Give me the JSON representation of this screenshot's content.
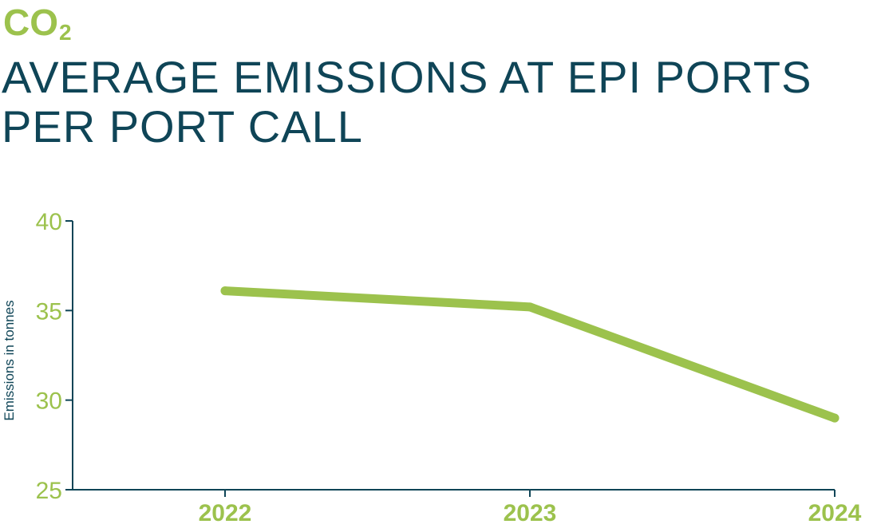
{
  "heading": {
    "prefix": "CO",
    "prefix_sub": "2",
    "title_line1": "AVERAGE EMISSIONS AT EPI PORTS",
    "title_line2": "PER PORT CALL"
  },
  "colors": {
    "accent": "#9cc24d",
    "navy": "#0f4557"
  },
  "chart_data": {
    "type": "line",
    "title": "AVERAGE EMISSIONS AT EPI PORTS PER PORT CALL",
    "xlabel": "",
    "ylabel": "Emissions in tonnes",
    "categories": [
      "2022",
      "2023",
      "2024"
    ],
    "values": [
      36.1,
      35.2,
      29.0
    ],
    "ylim": [
      25,
      40
    ],
    "yticks": [
      "25",
      "30",
      "35",
      "40"
    ],
    "grid": false,
    "legend": "none"
  }
}
